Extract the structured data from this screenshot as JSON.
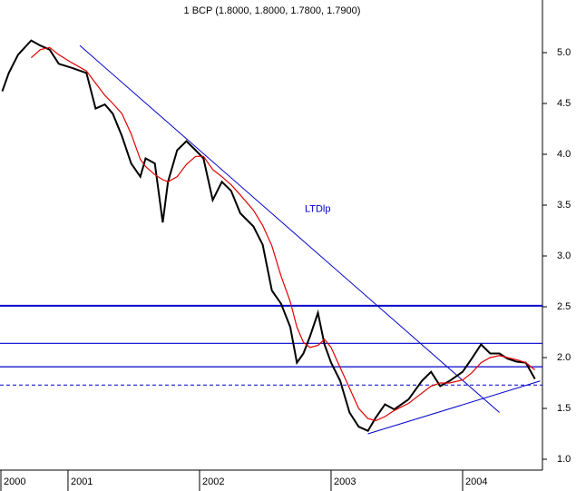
{
  "chart_data": {
    "type": "line",
    "title": "1 BCP (1.8000, 1.8000, 1.7800, 1.7900)",
    "x": [
      2000.5,
      2000.55,
      2000.62,
      2000.72,
      2000.79,
      2000.86,
      2000.93,
      2001.03,
      2001.14,
      2001.21,
      2001.28,
      2001.34,
      2001.41,
      2001.48,
      2001.55,
      2001.59,
      2001.66,
      2001.72,
      2001.76,
      2001.83,
      2001.9,
      2001.97,
      2002.03,
      2002.1,
      2002.17,
      2002.24,
      2002.31,
      2002.41,
      2002.48,
      2002.55,
      2002.62,
      2002.69,
      2002.74,
      2002.79,
      2002.84,
      2002.9,
      2002.95,
      2003.0,
      2003.07,
      2003.14,
      2003.21,
      2003.28,
      2003.34,
      2003.41,
      2003.48,
      2003.59,
      2003.69,
      2003.76,
      2003.83,
      2003.9,
      2004.0,
      2004.07,
      2004.14,
      2004.21,
      2004.28,
      2004.34,
      2004.41,
      2004.48,
      2004.55
    ],
    "series": [
      {
        "color": "#000000",
        "values": [
          4.62,
          4.8,
          4.98,
          5.12,
          5.07,
          5.03,
          4.89,
          4.85,
          4.8,
          4.45,
          4.49,
          4.4,
          4.18,
          3.91,
          3.78,
          3.96,
          3.91,
          3.33,
          3.73,
          4.04,
          4.13,
          4.04,
          3.96,
          3.55,
          3.73,
          3.64,
          3.42,
          3.29,
          3.11,
          2.66,
          2.53,
          2.3,
          1.95,
          2.04,
          2.21,
          2.44,
          2.13,
          1.95,
          1.77,
          1.46,
          1.32,
          1.28,
          1.41,
          1.54,
          1.49,
          1.59,
          1.77,
          1.86,
          1.72,
          1.77,
          1.86,
          1.99,
          2.13,
          2.04,
          2.04,
          1.99,
          1.96,
          1.95,
          1.79
        ]
      },
      {
        "color": "#e00000",
        "values": [
          null,
          null,
          null,
          4.95,
          5.03,
          5.05,
          4.98,
          4.9,
          4.82,
          4.7,
          4.58,
          4.5,
          4.4,
          4.2,
          3.95,
          3.88,
          3.8,
          3.75,
          3.73,
          3.78,
          3.9,
          3.98,
          3.98,
          3.85,
          3.78,
          3.7,
          3.6,
          3.45,
          3.3,
          3.1,
          2.8,
          2.55,
          2.3,
          2.15,
          2.1,
          2.12,
          2.18,
          2.1,
          1.9,
          1.7,
          1.5,
          1.4,
          1.38,
          1.42,
          1.48,
          1.55,
          1.65,
          1.72,
          1.75,
          1.75,
          1.78,
          1.85,
          1.95,
          2.0,
          2.02,
          2.0,
          1.98,
          1.95,
          1.88
        ]
      }
    ],
    "hlines": [
      2.51,
      2.14,
      1.91
    ],
    "dashed_hlines": [
      1.73
    ],
    "line_color": "#0000cc",
    "trendlines": [
      {
        "x": [
          2001.09,
          2004.28
        ],
        "values": [
          5.07,
          1.46
        ]
      },
      {
        "x": [
          2003.28,
          2004.59
        ],
        "values": [
          1.25,
          1.77
        ]
      }
    ],
    "annotation": {
      "text": "LTDlp",
      "x": 2002.8,
      "value": 3.46
    },
    "xlim": [
      2000.483,
      2004.607
    ],
    "ylim": [
      0.893,
      5.518
    ],
    "xticks": [
      {
        "value": 2000.49,
        "label": "2000"
      },
      2001,
      2002,
      2003,
      2004
    ],
    "yticks": [
      {
        "value": 1,
        "label": "1.0"
      },
      1.5,
      {
        "value": 2,
        "label": "2.0"
      },
      2.5,
      {
        "value": 3,
        "label": "3.0"
      },
      3.5,
      {
        "value": 4,
        "label": "4.0"
      },
      4.5,
      {
        "value": 5,
        "label": "5.0"
      }
    ]
  }
}
